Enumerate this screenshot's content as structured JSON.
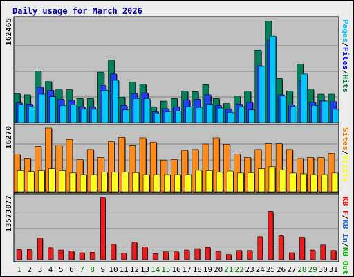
{
  "chart_data": {
    "type": "bar",
    "title": "Daily usage for March 2026",
    "categories": [
      "1",
      "2",
      "3",
      "4",
      "5",
      "6",
      "7",
      "8",
      "9",
      "10",
      "11",
      "12",
      "13",
      "14",
      "15",
      "16",
      "17",
      "18",
      "19",
      "20",
      "21",
      "22",
      "23",
      "24",
      "25",
      "26",
      "27",
      "28",
      "29",
      "30",
      "31"
    ],
    "weekend_days": [
      "1",
      "7",
      "8",
      "14",
      "15",
      "21",
      "22",
      "28",
      "29"
    ],
    "panels": [
      {
        "id": "hits_files_pages",
        "ymax": 162465,
        "ymax_label": "162465",
        "ylabel_parts": [
          {
            "text": "Pages",
            "color": "#00c8ff"
          },
          {
            "text": "/",
            "color": "#000000"
          },
          {
            "text": "Files",
            "color": "#0000ff"
          },
          {
            "text": "/",
            "color": "#000000"
          },
          {
            "text": "Hits",
            "color": "#008040"
          }
        ],
        "grid": true,
        "series": [
          {
            "name": "Hits",
            "color": "#00805c",
            "values": [
              46000,
              44000,
              82000,
              65000,
              53000,
              52000,
              38000,
              38000,
              80000,
              99000,
              40000,
              64000,
              61000,
              25000,
              34000,
              38000,
              50000,
              49000,
              60000,
              38000,
              30000,
              42000,
              50000,
              115000,
              161000,
              70000,
              50000,
              93000,
              53000,
              45000,
              45000
            ]
          },
          {
            "name": "Files",
            "color": "#2040ff",
            "values": [
              31000,
              29000,
              56000,
              51000,
              37000,
              35000,
              25000,
              25000,
              59000,
              77000,
              27000,
              46000,
              47000,
              17000,
              22000,
              25000,
              36000,
              37000,
              44000,
              27000,
              21000,
              29000,
              32000,
              90000,
              130000,
              44000,
              28000,
              67000,
              32000,
              35000,
              33000
            ]
          },
          {
            "name": "Pages",
            "color": "#00c8ff",
            "values": [
              28000,
              25000,
              45000,
              41000,
              27000,
              28000,
              21000,
              21000,
              51000,
              67000,
              20000,
              38000,
              38000,
              14000,
              17000,
              18000,
              25000,
              24000,
              29000,
              23000,
              16000,
              25000,
              20000,
              89000,
              137000,
              42000,
              25000,
              77000,
              27000,
              34000,
              21000
            ]
          }
        ]
      },
      {
        "id": "visits_sites",
        "ymax": 16270,
        "ymax_label": "16270",
        "ylabel_parts": [
          {
            "text": "Sites",
            "color": "#ff8000"
          },
          {
            "text": "/",
            "color": "#000000"
          },
          {
            "text": "Visits",
            "color": "#ffff00"
          }
        ],
        "grid": true,
        "series": [
          {
            "name": "Sites",
            "color": "#ff8c1a",
            "values": [
              9600,
              8600,
              11600,
              16270,
              11900,
              13400,
              8200,
              10800,
              8800,
              12800,
              13900,
              11800,
              13800,
              12600,
              8100,
              8200,
              10600,
              10800,
              12200,
              13800,
              12100,
              9600,
              8800,
              10800,
              12300,
              12300,
              10800,
              8500,
              8800,
              8800,
              9800
            ]
          },
          {
            "name": "Visits",
            "color": "#ffff20",
            "values": [
              5400,
              5200,
              5400,
              5900,
              5400,
              4800,
              4400,
              4400,
              5000,
              5000,
              5000,
              4900,
              4400,
              4400,
              4400,
              4400,
              4400,
              5500,
              5400,
              5000,
              5300,
              4800,
              4900,
              5900,
              6400,
              5600,
              4800,
              4600,
              4400,
              4400,
              4800
            ]
          }
        ]
      },
      {
        "id": "kbytes",
        "ymax": 13573877,
        "ymax_label": "13573877",
        "ylabel_parts": [
          {
            "text": "KB F",
            "color": "#ff0000"
          },
          {
            "text": "/",
            "color": "#000000"
          },
          {
            "text": "KB In",
            "color": "#1e64d2"
          },
          {
            "text": "/",
            "color": "#000000"
          },
          {
            "text": "KB Out",
            "color": "#00b000"
          }
        ],
        "grid": true,
        "series": [
          {
            "name": "KB F",
            "color": "#ee1c1c",
            "values": [
              2200000,
              2200000,
              4700000,
              2600000,
              2100000,
              1900000,
              1500000,
              1600000,
              13500000,
              3400000,
              1400000,
              3800000,
              2800000,
              1300000,
              1700000,
              1700000,
              2100000,
              2400000,
              2700000,
              1800000,
              1100000,
              2000000,
              2000000,
              5000000,
              10500000,
              5200000,
              1500000,
              4900000,
              2100000,
              3200000,
              2000000
            ]
          }
        ]
      }
    ]
  }
}
